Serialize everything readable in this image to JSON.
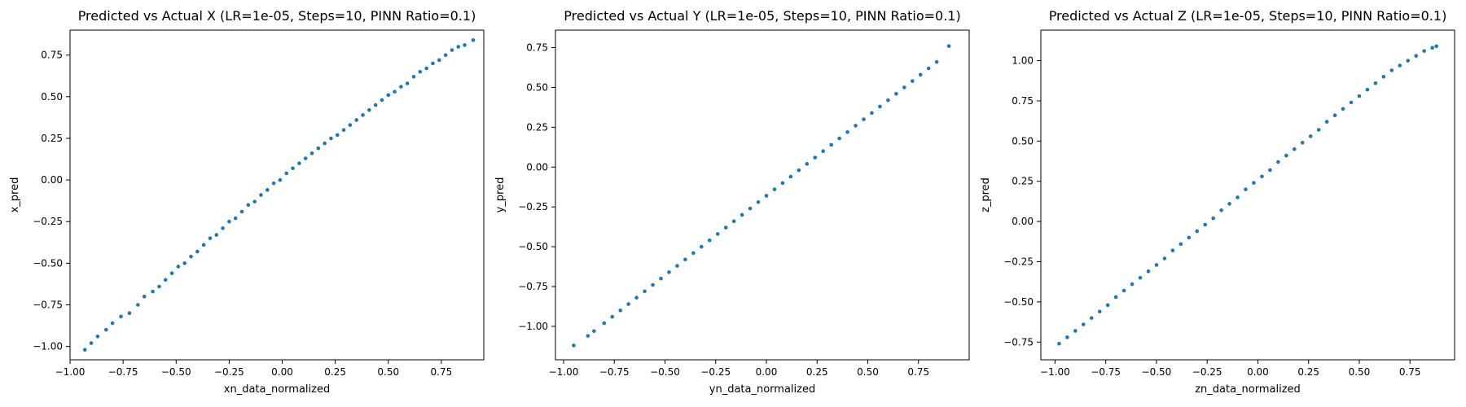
{
  "figure": {
    "background": "#ffffff",
    "point_color": "#1f77b4"
  },
  "chart_data": [
    {
      "type": "scatter",
      "title": "Predicted vs Actual X (LR=1e-05, Steps=10, PINN Ratio=0.1)",
      "xlabel": "xn_data_normalized",
      "ylabel": "x_pred",
      "xlim": [
        -1.0,
        0.95
      ],
      "ylim": [
        -1.08,
        0.9
      ],
      "xticks": [
        -1.0,
        -0.75,
        -0.5,
        -0.25,
        0.0,
        0.25,
        0.5,
        0.75
      ],
      "xtick_labels": [
        "−1.00",
        "−0.75",
        "−0.50",
        "−0.25",
        "0.00",
        "0.25",
        "0.50",
        "0.75"
      ],
      "yticks": [
        -1.0,
        -0.75,
        -0.5,
        -0.25,
        0.0,
        0.25,
        0.5,
        0.75
      ],
      "ytick_labels": [
        "−1.00",
        "−0.75",
        "−0.50",
        "−0.25",
        "0.00",
        "0.25",
        "0.50",
        "0.75"
      ],
      "grid": false,
      "series": [
        {
          "x": [
            -0.93,
            -0.9,
            -0.87,
            -0.83,
            -0.8,
            -0.76,
            -0.72,
            -0.68,
            -0.65,
            -0.61,
            -0.58,
            -0.55,
            -0.52,
            -0.49,
            -0.46,
            -0.43,
            -0.4,
            -0.37,
            -0.34,
            -0.31,
            -0.28,
            -0.25,
            -0.22,
            -0.19,
            -0.16,
            -0.13,
            -0.1,
            -0.07,
            -0.04,
            -0.01,
            0.02,
            0.05,
            0.08,
            0.11,
            0.14,
            0.17,
            0.2,
            0.23,
            0.26,
            0.29,
            0.32,
            0.35,
            0.38,
            0.41,
            0.44,
            0.47,
            0.5,
            0.53,
            0.56,
            0.59,
            0.62,
            0.65,
            0.68,
            0.71,
            0.74,
            0.77,
            0.8,
            0.83,
            0.86,
            0.9
          ],
          "y": [
            -1.02,
            -0.98,
            -0.94,
            -0.9,
            -0.86,
            -0.82,
            -0.8,
            -0.75,
            -0.7,
            -0.67,
            -0.64,
            -0.6,
            -0.56,
            -0.52,
            -0.5,
            -0.46,
            -0.43,
            -0.39,
            -0.35,
            -0.33,
            -0.29,
            -0.25,
            -0.23,
            -0.19,
            -0.15,
            -0.13,
            -0.09,
            -0.06,
            -0.02,
            0.0,
            0.04,
            0.07,
            0.1,
            0.13,
            0.16,
            0.19,
            0.22,
            0.25,
            0.27,
            0.3,
            0.33,
            0.36,
            0.39,
            0.42,
            0.45,
            0.48,
            0.51,
            0.53,
            0.56,
            0.58,
            0.62,
            0.65,
            0.67,
            0.7,
            0.72,
            0.75,
            0.78,
            0.8,
            0.81,
            0.84
          ]
        }
      ]
    },
    {
      "type": "scatter",
      "title": "Predicted vs Actual Y (LR=1e-05, Steps=10, PINN Ratio=0.1)",
      "xlabel": "yn_data_normalized",
      "ylabel": "y_pred",
      "xlim": [
        -1.04,
        1.0
      ],
      "ylim": [
        -1.21,
        0.86
      ],
      "xticks": [
        -1.0,
        -0.75,
        -0.5,
        -0.25,
        0.0,
        0.25,
        0.5,
        0.75
      ],
      "xtick_labels": [
        "−1.00",
        "−0.75",
        "−0.50",
        "−0.25",
        "0.00",
        "0.25",
        "0.50",
        "0.75"
      ],
      "yticks": [
        -1.0,
        -0.75,
        -0.5,
        -0.25,
        0.0,
        0.25,
        0.5,
        0.75
      ],
      "ytick_labels": [
        "−1.00",
        "−0.75",
        "−0.50",
        "−0.25",
        "0.00",
        "0.25",
        "0.50",
        "0.75"
      ],
      "grid": false,
      "series": [
        {
          "x": [
            -0.95,
            -0.88,
            -0.85,
            -0.8,
            -0.76,
            -0.72,
            -0.68,
            -0.64,
            -0.6,
            -0.56,
            -0.52,
            -0.48,
            -0.44,
            -0.4,
            -0.36,
            -0.32,
            -0.28,
            -0.24,
            -0.2,
            -0.16,
            -0.12,
            -0.08,
            -0.04,
            0.0,
            0.04,
            0.08,
            0.12,
            0.16,
            0.2,
            0.24,
            0.28,
            0.32,
            0.36,
            0.4,
            0.44,
            0.48,
            0.52,
            0.56,
            0.6,
            0.64,
            0.68,
            0.72,
            0.76,
            0.8,
            0.84,
            0.9
          ],
          "y": [
            -1.12,
            -1.06,
            -1.03,
            -0.98,
            -0.94,
            -0.9,
            -0.86,
            -0.82,
            -0.78,
            -0.74,
            -0.7,
            -0.66,
            -0.62,
            -0.58,
            -0.54,
            -0.5,
            -0.46,
            -0.42,
            -0.38,
            -0.34,
            -0.3,
            -0.26,
            -0.22,
            -0.18,
            -0.14,
            -0.1,
            -0.06,
            -0.02,
            0.02,
            0.06,
            0.1,
            0.14,
            0.18,
            0.22,
            0.26,
            0.3,
            0.34,
            0.38,
            0.42,
            0.46,
            0.5,
            0.54,
            0.58,
            0.62,
            0.66,
            0.76
          ]
        }
      ]
    },
    {
      "type": "scatter",
      "title": "Predicted vs Actual Z (LR=1e-05, Steps=10, PINN Ratio=0.1)",
      "xlabel": "zn_data_normalized",
      "ylabel": "z_pred",
      "xlim": [
        -1.07,
        0.97
      ],
      "ylim": [
        -0.86,
        1.19
      ],
      "xticks": [
        -1.0,
        -0.75,
        -0.5,
        -0.25,
        0.0,
        0.25,
        0.5,
        0.75
      ],
      "xtick_labels": [
        "−1.00",
        "−0.75",
        "−0.50",
        "−0.25",
        "0.00",
        "0.25",
        "0.50",
        "0.75"
      ],
      "yticks": [
        -0.75,
        -0.5,
        -0.25,
        0.0,
        0.25,
        0.5,
        0.75,
        1.0
      ],
      "ytick_labels": [
        "−0.75",
        "−0.50",
        "−0.25",
        "0.00",
        "0.25",
        "0.50",
        "0.75",
        "1.00"
      ],
      "grid": false,
      "series": [
        {
          "x": [
            -0.98,
            -0.94,
            -0.9,
            -0.86,
            -0.82,
            -0.78,
            -0.74,
            -0.7,
            -0.66,
            -0.62,
            -0.58,
            -0.54,
            -0.5,
            -0.46,
            -0.42,
            -0.38,
            -0.34,
            -0.3,
            -0.26,
            -0.22,
            -0.18,
            -0.14,
            -0.1,
            -0.06,
            -0.02,
            0.02,
            0.06,
            0.1,
            0.14,
            0.18,
            0.22,
            0.26,
            0.3,
            0.34,
            0.38,
            0.42,
            0.46,
            0.5,
            0.54,
            0.58,
            0.62,
            0.66,
            0.7,
            0.74,
            0.78,
            0.82,
            0.86,
            0.88
          ],
          "y": [
            -0.76,
            -0.72,
            -0.68,
            -0.64,
            -0.6,
            -0.56,
            -0.52,
            -0.47,
            -0.43,
            -0.39,
            -0.35,
            -0.31,
            -0.27,
            -0.23,
            -0.18,
            -0.14,
            -0.1,
            -0.06,
            -0.02,
            0.02,
            0.07,
            0.11,
            0.15,
            0.2,
            0.24,
            0.28,
            0.32,
            0.37,
            0.41,
            0.45,
            0.49,
            0.53,
            0.57,
            0.62,
            0.66,
            0.7,
            0.74,
            0.78,
            0.82,
            0.86,
            0.9,
            0.94,
            0.97,
            1.0,
            1.03,
            1.06,
            1.08,
            1.09
          ]
        }
      ]
    }
  ]
}
